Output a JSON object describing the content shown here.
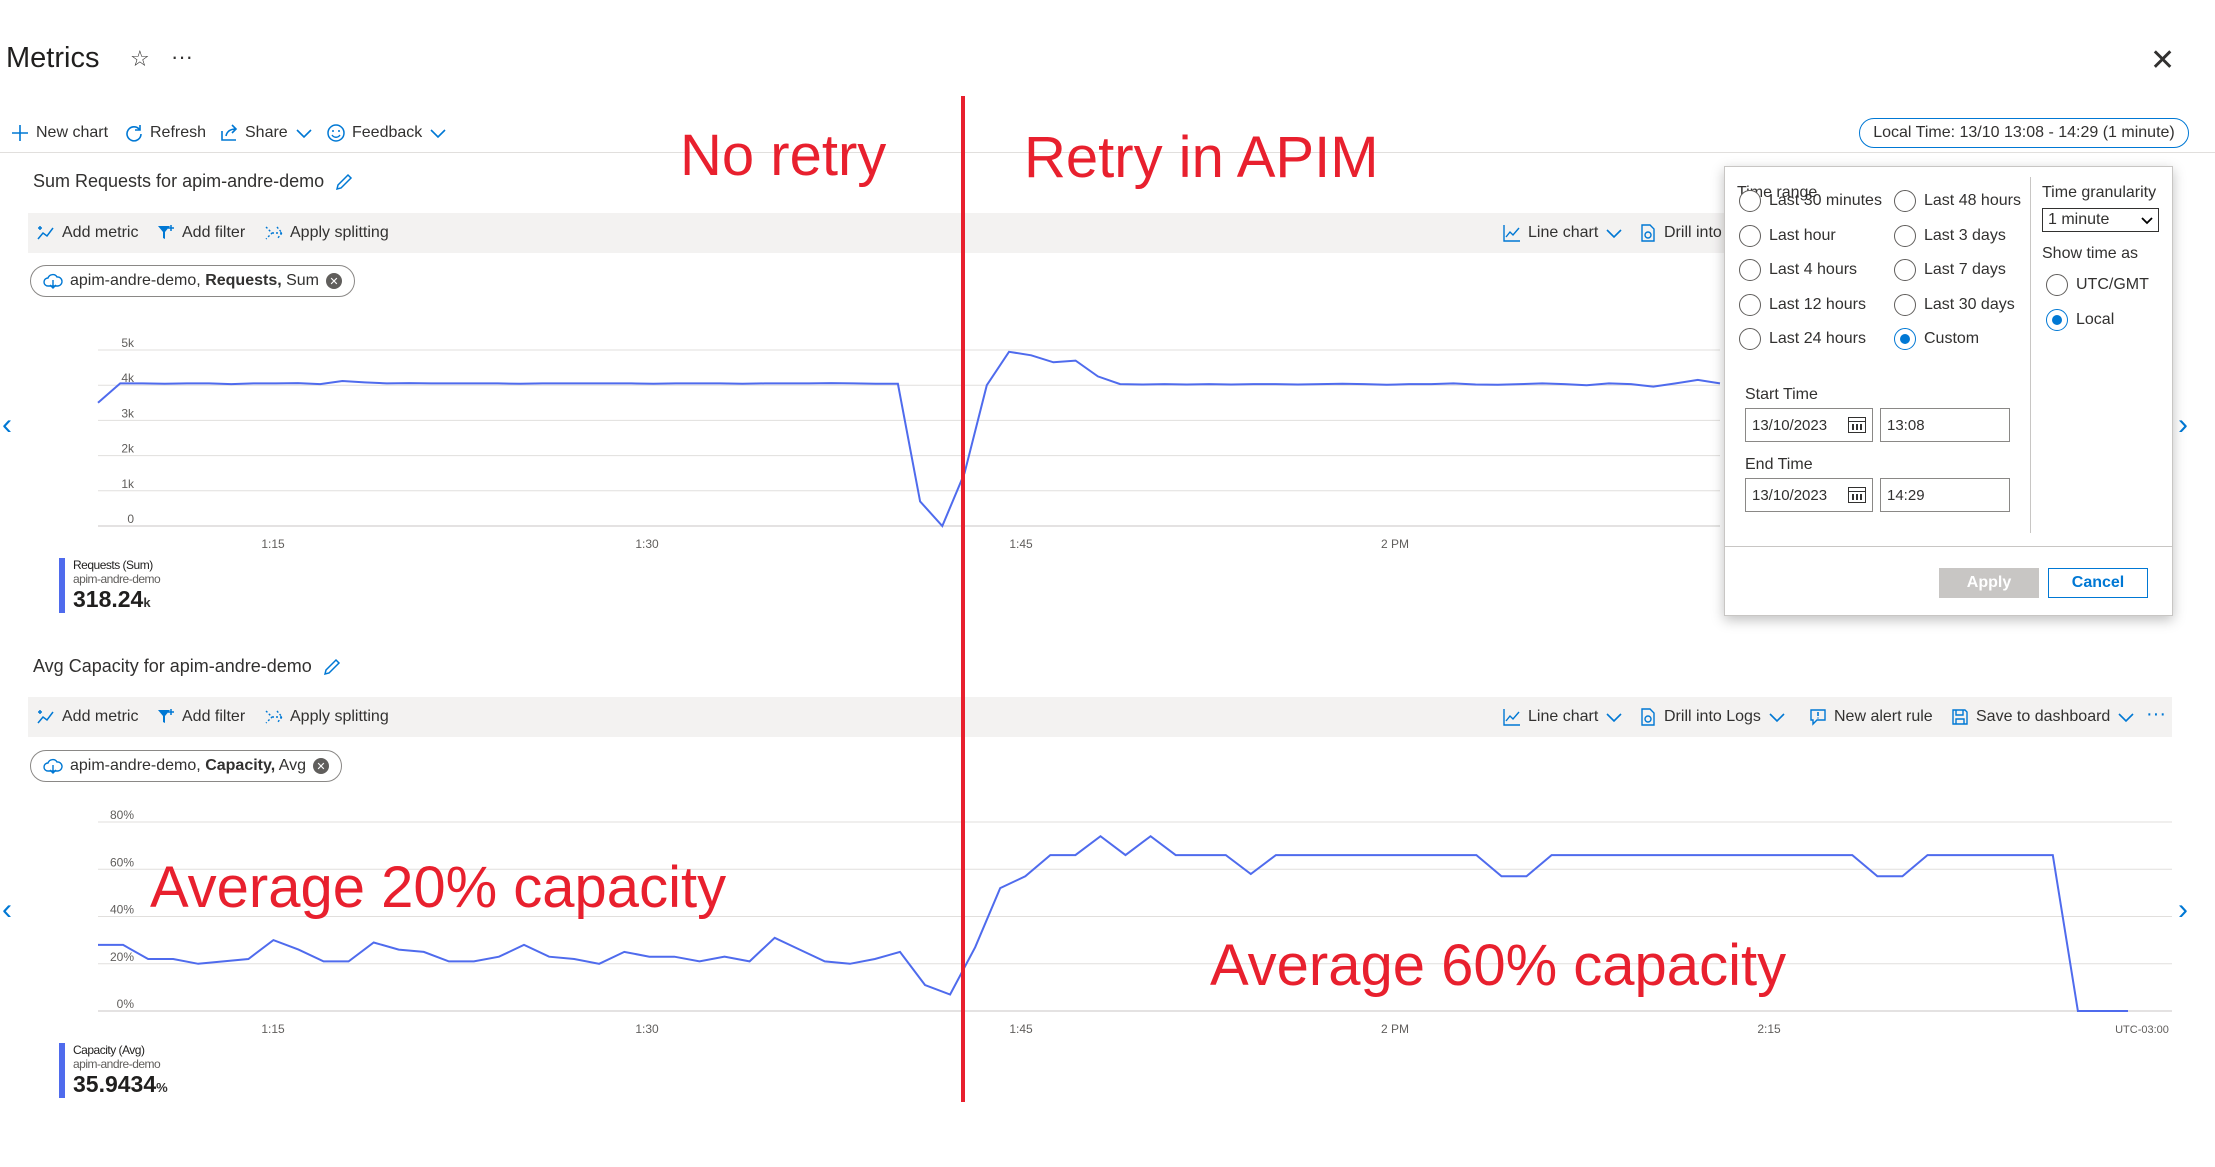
{
  "header": {
    "title": "Metrics",
    "star_icon": "star-icon",
    "more_icon": "ellipsis-icon",
    "close_icon": "close-icon"
  },
  "commands": {
    "new_chart": "New chart",
    "refresh": "Refresh",
    "share": "Share",
    "feedback": "Feedback",
    "time_pill": "Local Time: 13/10 13:08 - 14:29 (1 minute)"
  },
  "toolbar": {
    "add_metric": "Add metric",
    "add_filter": "Add filter",
    "apply_splitting": "Apply splitting",
    "line_chart": "Line chart",
    "drill_into_logs": "Drill into Logs",
    "drill_into_truncated": "Drill into",
    "new_alert_rule": "New alert rule",
    "save_to_dashboard": "Save to dashboard"
  },
  "charts": [
    {
      "title": "Sum Requests for apim-andre-demo",
      "pill_resource": "apim-andre-demo,",
      "pill_metric": "Requests,",
      "pill_agg": "Sum",
      "legend_line1": "Requests (Sum)",
      "legend_line2": "apim-andre-demo",
      "legend_value": "318.24",
      "legend_unit": "k"
    },
    {
      "title": "Avg Capacity for apim-andre-demo",
      "pill_resource": "apim-andre-demo,",
      "pill_metric": "Capacity,",
      "pill_agg": "Avg",
      "legend_line1": "Capacity (Avg)",
      "legend_line2": "apim-andre-demo",
      "legend_value": "35.9434",
      "legend_unit": "%"
    }
  ],
  "chart_data": [
    {
      "type": "line",
      "ylim": [
        0,
        5000
      ],
      "y_tick_labels": [
        "0",
        "1k",
        "2k",
        "3k",
        "4k",
        "5k"
      ],
      "x_tick_labels": [
        "1:15",
        "1:30",
        "1:45",
        "2 PM"
      ],
      "series": [
        {
          "values": [
            3500,
            4050,
            4050,
            4040,
            4050,
            4050,
            4030,
            4050,
            4050,
            4060,
            4030,
            4120,
            4080,
            4050,
            4060,
            4050,
            4050,
            4050,
            4050,
            4040,
            4050,
            4050,
            4050,
            4050,
            4050,
            4040,
            4050,
            4050,
            4050,
            4040,
            4050,
            4050,
            4050,
            4060,
            4050,
            4040,
            4040,
            700,
            0,
            1500,
            4000,
            4950,
            4850,
            4650,
            4700,
            4250,
            4030,
            4020,
            4030,
            4020,
            4030,
            4020,
            4030,
            4030,
            4020,
            4030,
            4040,
            4030,
            4010,
            4030,
            4030,
            4050,
            4020,
            4010,
            4030,
            4050,
            4030,
            4000,
            4050,
            4030,
            3960,
            4050,
            4150,
            4050
          ]
        }
      ],
      "color": "#4f6bed"
    },
    {
      "type": "line",
      "ylim": [
        0,
        80
      ],
      "y_tick_labels": [
        "0%",
        "20%",
        "40%",
        "60%",
        "80%"
      ],
      "x_tick_labels": [
        "1:15",
        "1:30",
        "1:45",
        "2 PM",
        "2:15",
        "UTC-03:00"
      ],
      "series": [
        {
          "values": [
            28,
            28,
            22,
            22,
            20,
            21,
            22,
            30,
            26,
            21,
            21,
            29,
            26,
            25,
            21,
            21,
            23,
            28,
            23,
            22,
            20,
            25,
            23,
            23,
            21,
            23,
            21,
            31,
            26,
            21,
            20,
            22,
            25,
            11,
            7,
            27,
            52,
            57,
            66,
            66,
            74,
            66,
            74,
            66,
            66,
            66,
            58,
            66,
            66,
            66,
            66,
            66,
            66,
            66,
            66,
            66,
            57,
            57,
            66,
            66,
            66,
            66,
            66,
            66,
            66,
            66,
            66,
            66,
            66,
            66,
            66,
            57,
            57,
            66,
            66,
            66,
            66,
            66,
            66,
            0,
            0,
            0
          ]
        }
      ],
      "color": "#4f6bed"
    }
  ],
  "annotations": {
    "no_retry": "No retry",
    "retry_in_apim": "Retry in APIM",
    "avg_20": "Average 20% capacity",
    "avg_60": "Average 60% capacity",
    "color": "#e8202e"
  },
  "time_popup": {
    "time_range_label": "Time range",
    "options_left": [
      "Last 30 minutes",
      "Last hour",
      "Last 4 hours",
      "Last 12 hours",
      "Last 24 hours"
    ],
    "options_right": [
      "Last 48 hours",
      "Last 3 days",
      "Last 7 days",
      "Last 30 days",
      "Custom"
    ],
    "selected": "Custom",
    "start_time_label": "Start Time",
    "start_date": "13/10/2023",
    "start_time": "13:08",
    "end_time_label": "End Time",
    "end_date": "13/10/2023",
    "end_time": "14:29",
    "granularity_label": "Time granularity",
    "granularity_value": "1 minute",
    "show_time_as_label": "Show time as",
    "show_utc": "UTC/GMT",
    "show_local": "Local",
    "apply": "Apply",
    "cancel": "Cancel"
  }
}
